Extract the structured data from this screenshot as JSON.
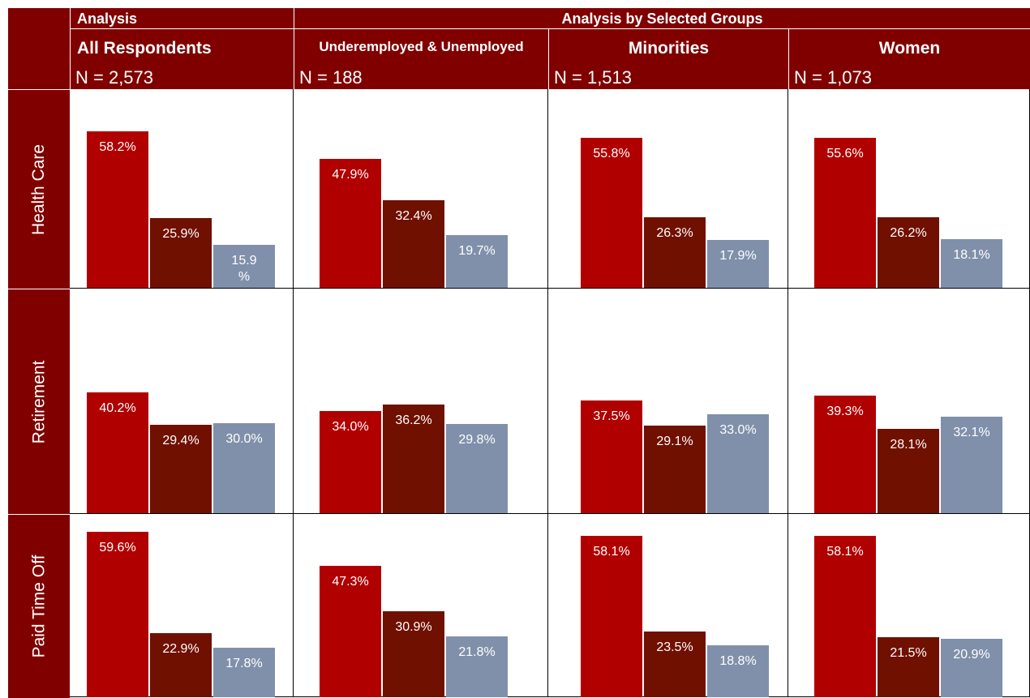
{
  "header": {
    "analysis": "Analysis",
    "analysis_by_groups": "Analysis by Selected Groups",
    "groups": [
      {
        "name": "All Respondents",
        "n": "N = 2,573"
      },
      {
        "name": "Underemployed & Unemployed",
        "n": "N = 188"
      },
      {
        "name": "Minorities",
        "n": "N = 1,513"
      },
      {
        "name": "Women",
        "n": "N = 1,073"
      }
    ]
  },
  "colors": {
    "header_bg": "#800000",
    "series": [
      "#b00000",
      "#701000",
      "#8090aa"
    ]
  },
  "chart_data": {
    "type": "bar",
    "rows": [
      "Health Care",
      "Retirement",
      "Paid Time Off"
    ],
    "columns": [
      "All Respondents",
      "Underemployed & Unemployed",
      "Minorities",
      "Women"
    ],
    "values": [
      [
        [
          58.2,
          25.9,
          15.9
        ],
        [
          47.9,
          32.4,
          19.7
        ],
        [
          55.8,
          26.3,
          17.9
        ],
        [
          55.6,
          26.2,
          18.1
        ]
      ],
      [
        [
          40.2,
          29.4,
          30.0
        ],
        [
          34.0,
          36.2,
          29.8
        ],
        [
          37.5,
          29.1,
          33.0
        ],
        [
          39.3,
          28.1,
          32.1
        ]
      ],
      [
        [
          59.6,
          22.9,
          17.8
        ],
        [
          47.3,
          30.9,
          21.8
        ],
        [
          58.1,
          23.5,
          18.8
        ],
        [
          58.1,
          21.5,
          20.9
        ]
      ]
    ],
    "labels": [
      [
        [
          "58.2%",
          "25.9%",
          "15.9\n%"
        ],
        [
          "47.9%",
          "32.4%",
          "19.7%"
        ],
        [
          "55.8%",
          "26.3%",
          "17.9%"
        ],
        [
          "55.6%",
          "26.2%",
          "18.1%"
        ]
      ],
      [
        [
          "40.2%",
          "29.4%",
          "30.0%"
        ],
        [
          "34.0%",
          "36.2%",
          "29.8%"
        ],
        [
          "37.5%",
          "29.1%",
          "33.0%"
        ],
        [
          "39.3%",
          "28.1%",
          "32.1%"
        ]
      ],
      [
        [
          "59.6%",
          "22.9%",
          "17.8%"
        ],
        [
          "47.3%",
          "30.9%",
          "21.8%"
        ],
        [
          "58.1%",
          "23.5%",
          "18.8%"
        ],
        [
          "58.1%",
          "21.5%",
          "20.9%"
        ]
      ]
    ],
    "ylim": [
      0,
      100
    ]
  }
}
